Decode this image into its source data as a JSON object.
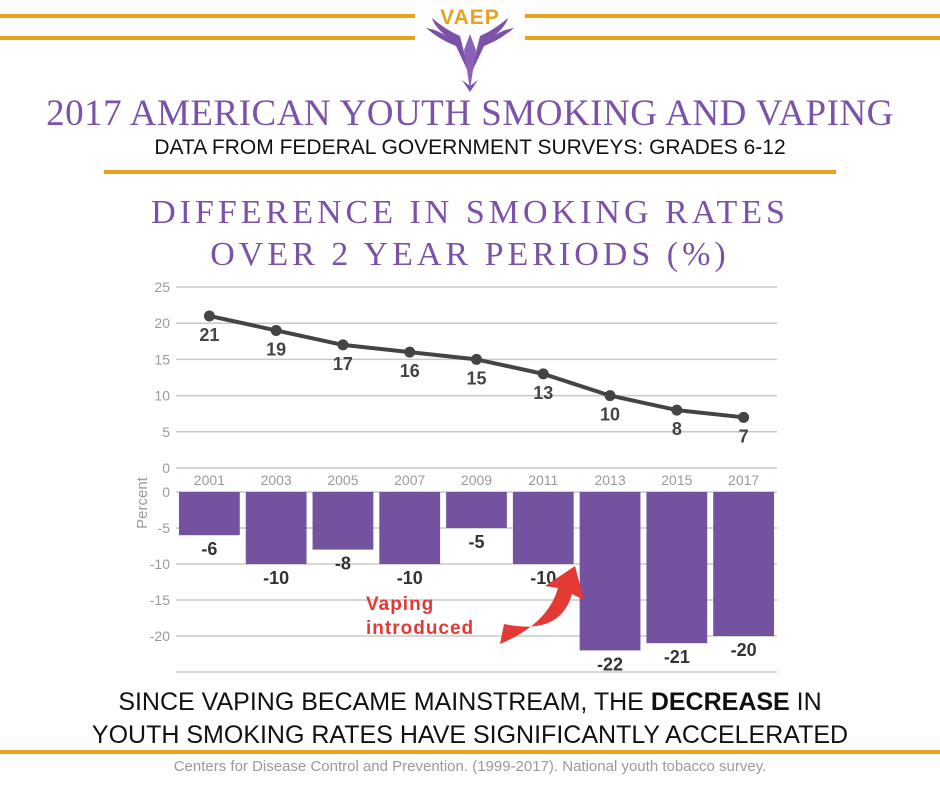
{
  "brand": {
    "name": "VAEP"
  },
  "header": {
    "title": "2017 AMERICAN YOUTH SMOKING AND VAPING",
    "subtitle": "DATA FROM FEDERAL GOVERNMENT SURVEYS: GRADES 6-12"
  },
  "chart_title": {
    "line1": "DIFFERENCE IN SMOKING RATES",
    "line2": "OVER 2 YEAR PERIODS (%)"
  },
  "conclusion": {
    "part1": "SINCE VAPING BECAME MAINSTREAM, THE ",
    "emphasis": "DECREASE",
    "part2": " IN",
    "line2": "YOUTH SMOKING RATES HAVE SIGNIFICANTLY ACCELERATED"
  },
  "source": "Centers for Disease Control and Prevention. (1999-2017). National youth tobacco survey.",
  "colors": {
    "accent": "#e8a21e",
    "purple": "#7b52a8",
    "bar": "#7352a0",
    "line": "#444444",
    "arrow": "#e53935",
    "grid": "#c8c8c8"
  },
  "chart_data": [
    {
      "type": "line",
      "categories": [
        "2001",
        "2003",
        "2005",
        "2007",
        "2009",
        "2011",
        "2013",
        "2015",
        "2017"
      ],
      "values": [
        21,
        19,
        17,
        16,
        15,
        13,
        10,
        8,
        7
      ],
      "ylim": [
        0,
        25
      ],
      "yticks": [
        0,
        5,
        10,
        15,
        20,
        25
      ],
      "ylabel": "",
      "grid": true
    },
    {
      "type": "bar",
      "categories": [
        "2001",
        "2003",
        "2005",
        "2007",
        "2009",
        "2011",
        "2013",
        "2015",
        "2017"
      ],
      "values": [
        -6,
        -10,
        -8,
        -10,
        -5,
        -10,
        -22,
        -21,
        -20
      ],
      "ylim": [
        -25,
        0
      ],
      "yticks": [
        0,
        -5,
        -10,
        -15,
        -20
      ],
      "ylabel": "Percent",
      "grid": true,
      "annotation": {
        "line1": "Vaping",
        "line2": "introduced",
        "points_to": "2013"
      }
    }
  ]
}
